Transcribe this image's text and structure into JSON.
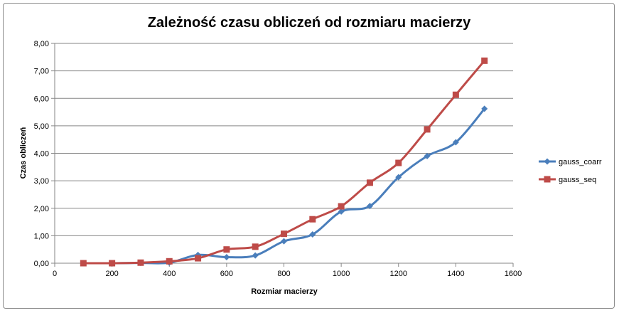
{
  "chart_data": {
    "type": "line",
    "title": "Zależność czasu obliczeń od rozmiaru macierzy",
    "xlabel": "Rozmiar macierzy",
    "ylabel": "Czas obliczeń",
    "xlim": [
      0,
      1600
    ],
    "ylim": [
      0,
      8
    ],
    "x_ticks": [
      "0",
      "200",
      "400",
      "600",
      "800",
      "1000",
      "1200",
      "1400",
      "1600"
    ],
    "y_ticks": [
      "0,00",
      "1,00",
      "2,00",
      "3,00",
      "4,00",
      "5,00",
      "6,00",
      "7,00",
      "8,00"
    ],
    "grid": "horizontal",
    "legend_position": "right",
    "series": [
      {
        "name": "gauss_coarr",
        "color": "#4a7ebb",
        "marker": "diamond",
        "x": [
          100,
          200,
          300,
          400,
          500,
          600,
          700,
          800,
          900,
          1000,
          1100,
          1200,
          1300,
          1400,
          1500
        ],
        "y": [
          0.0,
          0.0,
          0.01,
          0.02,
          0.3,
          0.22,
          0.28,
          0.8,
          1.05,
          1.88,
          2.08,
          3.13,
          3.9,
          4.4,
          5.62
        ]
      },
      {
        "name": "gauss_seq",
        "color": "#be4b48",
        "marker": "square",
        "x": [
          100,
          200,
          300,
          400,
          500,
          600,
          700,
          800,
          900,
          1000,
          1100,
          1200,
          1300,
          1400,
          1500
        ],
        "y": [
          0.0,
          0.0,
          0.02,
          0.07,
          0.18,
          0.5,
          0.6,
          1.07,
          1.6,
          2.07,
          2.93,
          3.65,
          4.87,
          6.13,
          7.37
        ]
      }
    ]
  }
}
